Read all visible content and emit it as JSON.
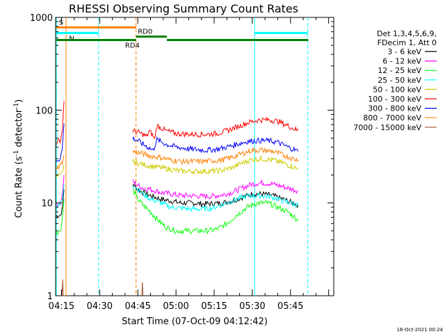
{
  "chart_data": {
    "type": "line",
    "title": "RHESSI Observing Summary Count Rates",
    "xlabel": "Start Time (07-Oct-09 04:12:42)",
    "ylabel_main": "Count Rate (s",
    "ylabel_sup1": "-1",
    "ylabel_mid": " detector",
    "ylabel_sup2": "-1",
    "ylabel_end": ")",
    "y_scale": "log",
    "ylim": [
      1,
      1000
    ],
    "xlim_minutes": [
      252.7,
      362
    ],
    "y_ticks": [
      {
        "v": 1000,
        "label": "1000"
      },
      {
        "v": 100,
        "label": "100"
      },
      {
        "v": 10,
        "label": "10"
      },
      {
        "v": 1,
        "label": "1"
      }
    ],
    "x_ticks": [
      {
        "t": 255,
        "label": "04:15"
      },
      {
        "t": 270,
        "label": "04:30"
      },
      {
        "t": 285,
        "label": "04:45"
      },
      {
        "t": 300,
        "label": "05:00"
      },
      {
        "t": 315,
        "label": "05:15"
      },
      {
        "t": 330,
        "label": "05:30"
      },
      {
        "t": 345,
        "label": "05:45"
      }
    ],
    "legend_header": [
      "Det 1,3,4,5,6,9,",
      "FDecim 1, Att 0"
    ],
    "legend_placement": "right",
    "series": [
      {
        "name": "3 - 6 keV",
        "color": "#000000",
        "segments": [
          [
            [
              252.9,
              7.2
            ],
            [
              254.5,
              7.4
            ],
            [
              255.3,
              8.5
            ],
            [
              256,
              14
            ]
          ],
          [
            [
              283,
              16
            ],
            [
              285,
              14
            ],
            [
              287,
              13
            ],
            [
              290,
              12
            ],
            [
              294,
              11
            ],
            [
              298,
              10.5
            ],
            [
              302,
              10
            ],
            [
              306,
              10
            ],
            [
              310,
              9.8
            ],
            [
              314,
              9.8
            ],
            [
              318,
              10
            ],
            [
              322,
              10.5
            ],
            [
              326,
              11.5
            ],
            [
              330,
              12.5
            ],
            [
              334,
              12.5
            ],
            [
              338,
              12
            ],
            [
              342,
              11
            ],
            [
              346,
              10
            ],
            [
              348,
              9.5
            ]
          ]
        ]
      },
      {
        "name": "6 - 12 keV",
        "color": "#ff00ff",
        "segments": [
          [
            [
              252.9,
              9.5
            ],
            [
              254.5,
              10
            ],
            [
              255.3,
              12
            ],
            [
              256,
              20
            ]
          ],
          [
            [
              283,
              17
            ],
            [
              285,
              15.5
            ],
            [
              287,
              14.5
            ],
            [
              290,
              14
            ],
            [
              294,
              13
            ],
            [
              298,
              12.5
            ],
            [
              302,
              12
            ],
            [
              306,
              12
            ],
            [
              310,
              11.8
            ],
            [
              314,
              11.8
            ],
            [
              318,
              12.2
            ],
            [
              322,
              13
            ],
            [
              326,
              14.5
            ],
            [
              330,
              16
            ],
            [
              334,
              16.5
            ],
            [
              338,
              16
            ],
            [
              342,
              15
            ],
            [
              346,
              14
            ],
            [
              348,
              13.5
            ]
          ]
        ]
      },
      {
        "name": "12 - 25 keV",
        "color": "#00ff00",
        "segments": [
          [
            [
              252.9,
              4.8
            ],
            [
              254.5,
              5
            ],
            [
              255.3,
              6.5
            ],
            [
              256,
              11
            ]
          ],
          [
            [
              283,
              14
            ],
            [
              285,
              11
            ],
            [
              287,
              9.5
            ],
            [
              290,
              8
            ],
            [
              293,
              6.5
            ],
            [
              296,
              5.5
            ],
            [
              300,
              5
            ],
            [
              306,
              5
            ],
            [
              312,
              5
            ],
            [
              316,
              5.2
            ],
            [
              320,
              6
            ],
            [
              324,
              7.5
            ],
            [
              328,
              9
            ],
            [
              332,
              10
            ],
            [
              336,
              10
            ],
            [
              340,
              9
            ],
            [
              344,
              8
            ],
            [
              348,
              6.5
            ]
          ]
        ]
      },
      {
        "name": "25 - 50 keV",
        "color": "#00ffff",
        "segments": [
          [
            [
              252.9,
              9
            ],
            [
              254.5,
              9.5
            ],
            [
              255.3,
              11
            ],
            [
              256,
              16
            ]
          ],
          [
            [
              283,
              16
            ],
            [
              285,
              14
            ],
            [
              287,
              12.5
            ],
            [
              290,
              11
            ],
            [
              294,
              10
            ],
            [
              298,
              9
            ],
            [
              302,
              8.8
            ],
            [
              306,
              8.6
            ],
            [
              310,
              8.6
            ],
            [
              314,
              8.8
            ],
            [
              318,
              9.5
            ],
            [
              322,
              10.5
            ],
            [
              326,
              11.5
            ],
            [
              330,
              12
            ],
            [
              334,
              12
            ],
            [
              338,
              11.5
            ],
            [
              342,
              10.5
            ],
            [
              346,
              9.8
            ],
            [
              348,
              9.5
            ]
          ]
        ]
      },
      {
        "name": "50 - 100 keV",
        "color": "#cccc00",
        "segments": [
          [
            [
              252.9,
              19
            ],
            [
              254.5,
              19.5
            ],
            [
              255.3,
              21
            ],
            [
              256,
              26
            ]
          ],
          [
            [
              283,
              28
            ],
            [
              285,
              27
            ],
            [
              287,
              26
            ],
            [
              290,
              25
            ],
            [
              294,
              24
            ],
            [
              298,
              23
            ],
            [
              302,
              22
            ],
            [
              306,
              22
            ],
            [
              310,
              22
            ],
            [
              314,
              22
            ],
            [
              318,
              22.5
            ],
            [
              322,
              24
            ],
            [
              326,
              27
            ],
            [
              330,
              29.5
            ],
            [
              334,
              30
            ],
            [
              338,
              29
            ],
            [
              342,
              27
            ],
            [
              346,
              24.5
            ],
            [
              348,
              23
            ]
          ]
        ]
      },
      {
        "name": "100 - 300 keV",
        "color": "#ff0000",
        "segments": [
          [
            [
              252.9,
              45
            ],
            [
              254.5,
              47
            ],
            [
              255.3,
              60
            ],
            [
              256,
              125
            ]
          ],
          [
            [
              283,
              60
            ],
            [
              285,
              58
            ],
            [
              287,
              55
            ],
            [
              288.5,
              52
            ],
            [
              289.5,
              60
            ],
            [
              291,
              53
            ],
            [
              291.5,
              48
            ],
            [
              292.5,
              68
            ],
            [
              294,
              65
            ],
            [
              296,
              60
            ],
            [
              300,
              56
            ],
            [
              306,
              55
            ],
            [
              312,
              55
            ],
            [
              316,
              56
            ],
            [
              320,
              60
            ],
            [
              324,
              66
            ],
            [
              328,
              73
            ],
            [
              332,
              78
            ],
            [
              336,
              79
            ],
            [
              340,
              76
            ],
            [
              344,
              68
            ],
            [
              348,
              60
            ]
          ]
        ]
      },
      {
        "name": "300 - 800 keV",
        "color": "#0000ff",
        "segments": [
          [
            [
              252.9,
              29
            ],
            [
              254.5,
              30
            ],
            [
              255.3,
              38
            ],
            [
              256,
              72
            ]
          ],
          [
            [
              283,
              50
            ],
            [
              285,
              47
            ],
            [
              287,
              43
            ],
            [
              289,
              40
            ],
            [
              291,
              37
            ],
            [
              292.5,
              48
            ],
            [
              294,
              46
            ],
            [
              296,
              43
            ],
            [
              300,
              40
            ],
            [
              306,
              38
            ],
            [
              312,
              37
            ],
            [
              316,
              38
            ],
            [
              320,
              40
            ],
            [
              324,
              43
            ],
            [
              328,
              46
            ],
            [
              332,
              47
            ],
            [
              336,
              47
            ],
            [
              340,
              45
            ],
            [
              344,
              40
            ],
            [
              348,
              36
            ]
          ]
        ]
      },
      {
        "name": "800 - 7000 keV",
        "color": "#ff8000",
        "segments": [
          [
            [
              252.9,
              24
            ],
            [
              254.5,
              25
            ],
            [
              255.3,
              28
            ],
            [
              256,
              33
            ]
          ],
          [
            [
              283,
              36
            ],
            [
              285,
              35
            ],
            [
              287,
              34
            ],
            [
              290,
              32
            ],
            [
              294,
              31
            ],
            [
              298,
              29
            ],
            [
              302,
              28
            ],
            [
              306,
              28
            ],
            [
              310,
              28
            ],
            [
              314,
              28.5
            ],
            [
              318,
              29
            ],
            [
              322,
              31
            ],
            [
              326,
              34
            ],
            [
              330,
              37
            ],
            [
              334,
              37
            ],
            [
              338,
              36
            ],
            [
              342,
              33
            ],
            [
              346,
              30
            ],
            [
              348,
              29
            ]
          ]
        ]
      },
      {
        "name": "7000 - 15000 keV",
        "color": "#a0522d",
        "segments": [
          [
            [
              255.2,
              1
            ],
            [
              255.5,
              1.5
            ],
            [
              255.7,
              1
            ],
            [
              256.2,
              1
            ]
          ],
          [
            [
              286.6,
              1
            ],
            [
              286.8,
              1.4
            ],
            [
              287,
              1
            ]
          ]
        ]
      }
    ],
    "vlines": [
      {
        "t": 253.0,
        "color": "#00ffff",
        "style": "solid"
      },
      {
        "t": 256.8,
        "color": "#ff8000",
        "style": "solid"
      },
      {
        "t": 269.6,
        "color": "#00ffff",
        "style": "dashed"
      },
      {
        "t": 284.3,
        "color": "#ff8000",
        "style": "dashed"
      },
      {
        "t": 330.9,
        "color": "#00ffff",
        "style": "solid"
      },
      {
        "t": 351.8,
        "color": "#00ffff",
        "style": "dashed"
      }
    ],
    "bars": [
      {
        "label": "S",
        "color": "#ff8000",
        "t0": 253.0,
        "t1": 284.3,
        "y": 780,
        "label_t": 254
      },
      {
        "label": "N",
        "color": "#00ffff",
        "t0": 253.0,
        "t1": 269.6,
        "y": 680,
        "label_t": 258
      },
      {
        "label": "",
        "color": "#00ffff",
        "t0": 330.9,
        "t1": 351.8,
        "y": 680,
        "label_t": 0
      },
      {
        "label": "RD0",
        "color": "#008000",
        "t0": 284.3,
        "t1": 296.4,
        "y": 620,
        "label_t": 285
      },
      {
        "label": "RD4",
        "color": "#008000",
        "t0": 253.0,
        "t1": 284.3,
        "y": 570,
        "label_t": 280
      },
      {
        "label": "",
        "color": "#008000",
        "t0": 296.4,
        "t1": 352,
        "y": 570,
        "label_t": 0
      }
    ],
    "gridlines": false
  },
  "timestamp": "16-Oct-2021 00:24"
}
